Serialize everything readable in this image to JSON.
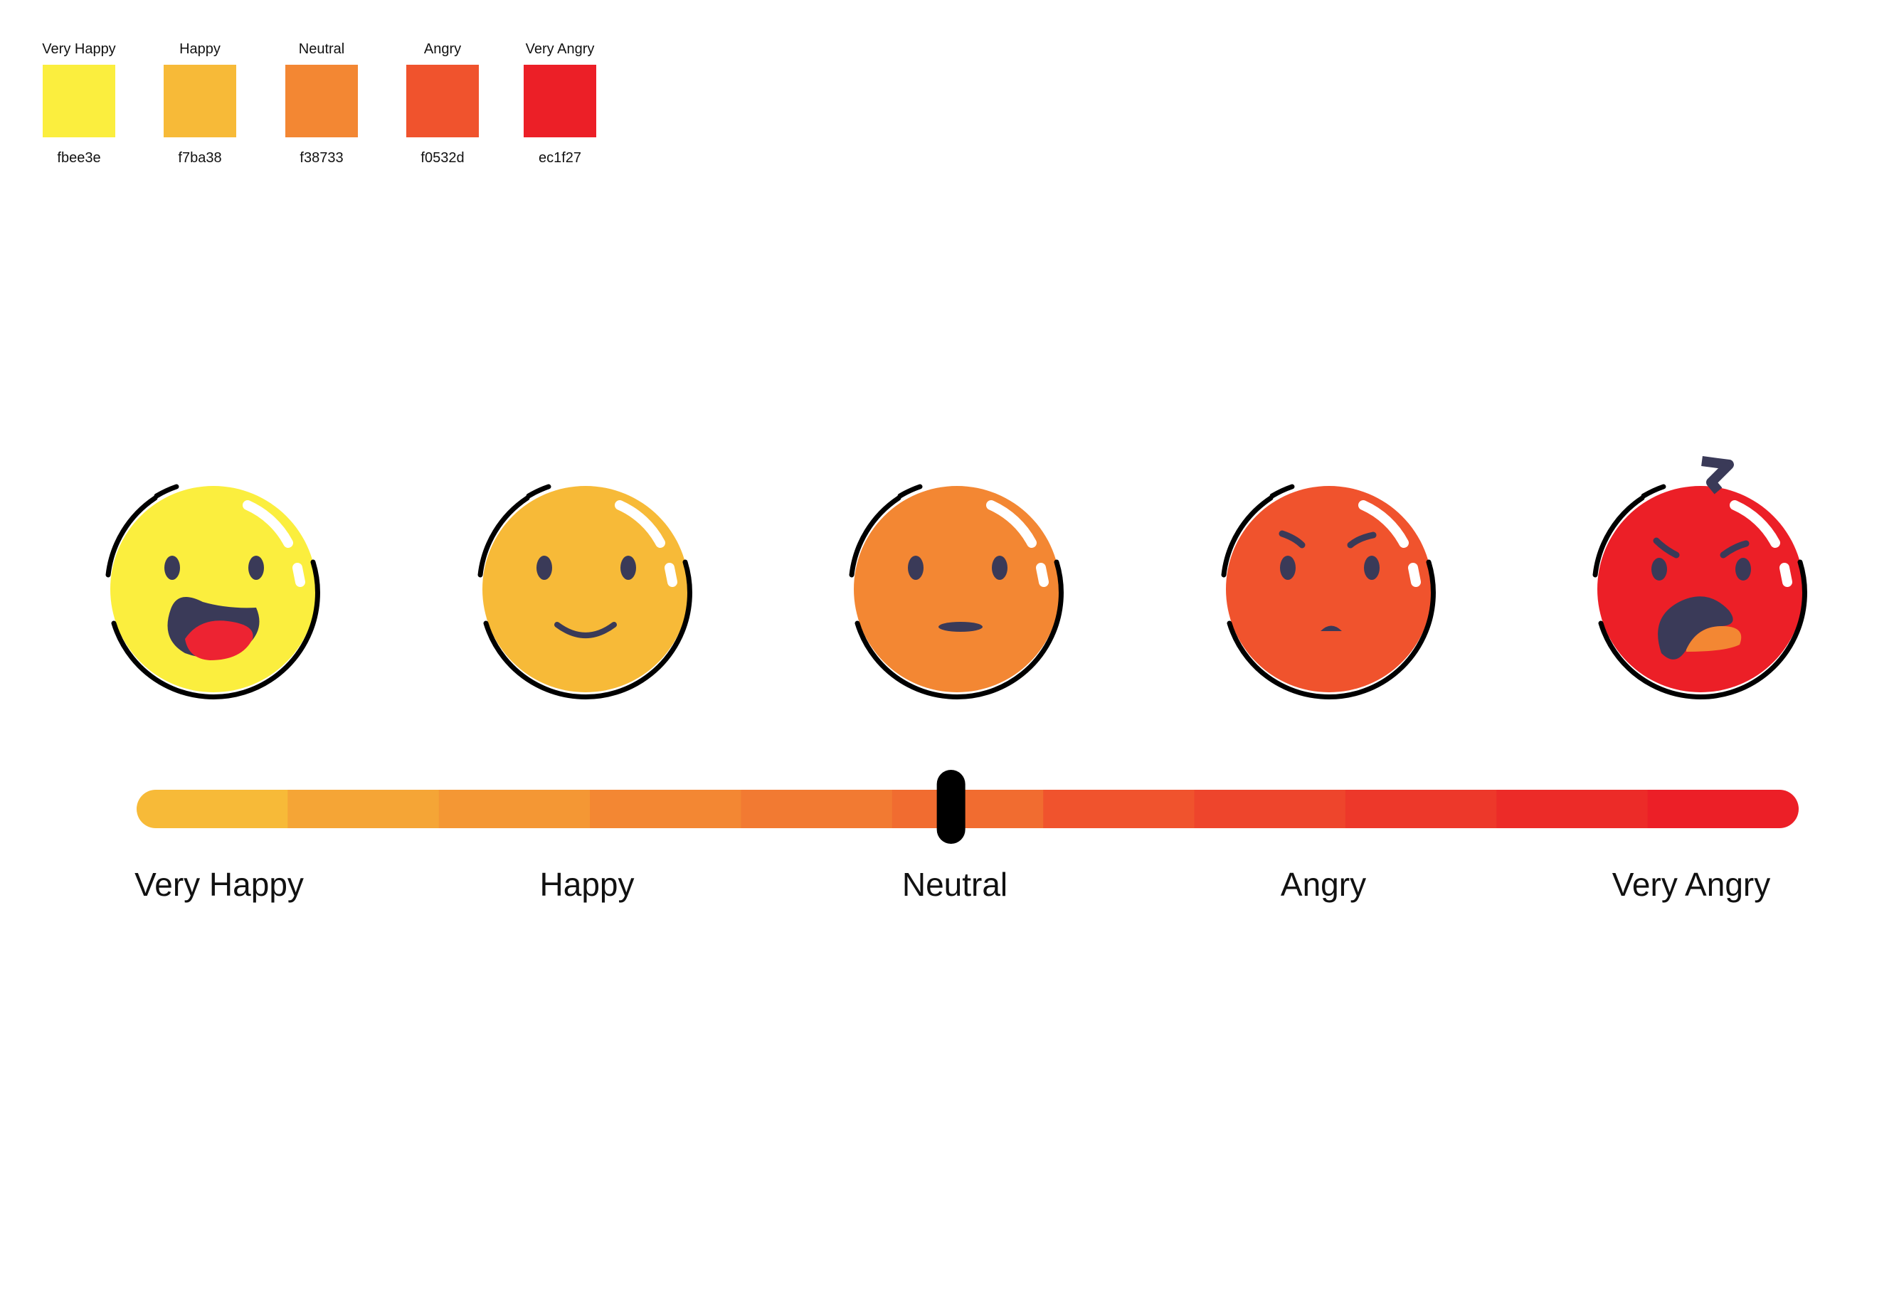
{
  "palette": [
    {
      "name": "Very Happy",
      "hex": "fbee3e",
      "color": "#fbee3e"
    },
    {
      "name": "Happy",
      "hex": "f7ba38",
      "color": "#f7ba38"
    },
    {
      "name": "Neutral",
      "hex": "f38733",
      "color": "#f38733"
    },
    {
      "name": "Angry",
      "hex": "f0532d",
      "color": "#f0532d"
    },
    {
      "name": "Very Angry",
      "hex": "ec1f27",
      "color": "#ec1f27"
    }
  ],
  "faces": [
    {
      "mood": "very-happy",
      "icon": "very-happy-face-icon",
      "fill": "#fbee3e"
    },
    {
      "mood": "happy",
      "icon": "happy-face-icon",
      "fill": "#f7ba38"
    },
    {
      "mood": "neutral",
      "icon": "neutral-face-icon",
      "fill": "#f38733"
    },
    {
      "mood": "angry",
      "icon": "angry-face-icon",
      "fill": "#f0532d"
    },
    {
      "mood": "very-angry",
      "icon": "very-angry-face-icon",
      "fill": "#ec1f27"
    }
  ],
  "scale": {
    "labels": [
      "Very Happy",
      "Happy",
      "Neutral",
      "Angry",
      "Very Angry"
    ],
    "selected": "Neutral",
    "slider_value_fraction": 0.49,
    "gradient_colors": [
      "#f7ba38",
      "#f5a536",
      "#f49734",
      "#f38733",
      "#f27a32",
      "#f16c30",
      "#f0532d",
      "#ee452c",
      "#ed382a",
      "#ec2b28",
      "#ec1f27"
    ]
  },
  "colors": {
    "outline": "#000000",
    "feature": "#3a3a58",
    "mouth_inner": "#ed2332",
    "shine": "#ffffff"
  }
}
